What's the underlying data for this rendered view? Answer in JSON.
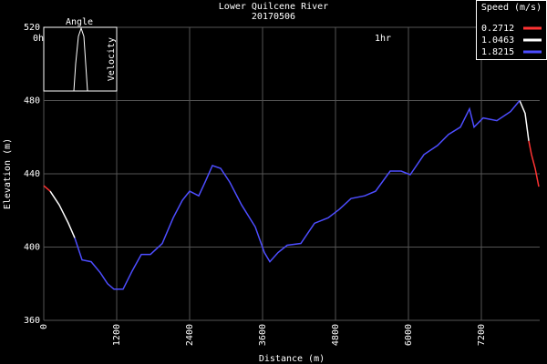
{
  "chart_data": {
    "type": "line",
    "title": "Lower Quilcene River",
    "subtitle": "20170506",
    "x_label": "Distance (m)",
    "y_label": "Elevation (m)",
    "legend_title": "Speed (m/s)",
    "legend_position": "upper right",
    "annotations": [
      "0h",
      "1hr"
    ],
    "inset": {
      "x_label": "Angle",
      "y_label": "Velocity"
    },
    "x": [
      0,
      105,
      255,
      405,
      510,
      630,
      780,
      930,
      1050,
      1155,
      1305,
      1455,
      1605,
      1755,
      1950,
      2130,
      2280,
      2400,
      2550,
      2655,
      2775,
      2910,
      3060,
      3255,
      3480,
      3630,
      3720,
      3855,
      4005,
      4230,
      4455,
      4680,
      4860,
      5055,
      5280,
      5460,
      5700,
      5880,
      6030,
      6255,
      6480,
      6660,
      6855,
      7005,
      7080,
      7230,
      7455,
      7680,
      7830,
      7920,
      7980,
      8025,
      8085,
      8145
    ],
    "series": [
      {
        "name": "0.2712",
        "color": "#ff3333",
        "values": [
          433.5,
          430.5,
          null,
          null,
          null,
          null,
          null,
          null,
          null,
          null,
          null,
          null,
          null,
          null,
          null,
          null,
          null,
          null,
          null,
          null,
          null,
          null,
          null,
          null,
          null,
          null,
          null,
          null,
          null,
          null,
          null,
          null,
          null,
          null,
          null,
          null,
          null,
          null,
          null,
          null,
          null,
          null,
          null,
          null,
          null,
          null,
          null,
          null,
          null,
          null,
          458,
          450.5,
          443,
          433
        ]
      },
      {
        "name": "1.0463",
        "color": "#ffffff",
        "values": [
          null,
          430.5,
          423,
          413,
          405,
          null,
          null,
          null,
          null,
          null,
          null,
          null,
          null,
          null,
          null,
          null,
          null,
          null,
          null,
          null,
          null,
          null,
          null,
          null,
          null,
          null,
          null,
          null,
          null,
          null,
          null,
          null,
          null,
          null,
          null,
          null,
          null,
          null,
          null,
          null,
          null,
          null,
          null,
          null,
          null,
          null,
          null,
          null,
          480,
          473,
          458,
          null,
          null,
          null
        ]
      },
      {
        "name": "1.8215",
        "color": "#4d4dff",
        "values": [
          null,
          null,
          null,
          null,
          405,
          393,
          392,
          386,
          380,
          377,
          377,
          387,
          396,
          396,
          402,
          416,
          425.5,
          430.5,
          428,
          435.5,
          444.5,
          443,
          435.5,
          423,
          411,
          397,
          392,
          397,
          401,
          402,
          413,
          416,
          420.5,
          426.5,
          428,
          430.5,
          441.5,
          441.5,
          439.5,
          450.5,
          455.5,
          461.5,
          465.5,
          475.5,
          465.5,
          470.5,
          469,
          474,
          480,
          null,
          null,
          null,
          null,
          null
        ]
      }
    ],
    "xlim": [
      0,
      8160
    ],
    "ylim": [
      360,
      520
    ],
    "xticks": [
      0,
      1200,
      2400,
      3600,
      4800,
      6000,
      7200
    ],
    "yticks": [
      360,
      400,
      440,
      480,
      520
    ],
    "grid": true
  }
}
